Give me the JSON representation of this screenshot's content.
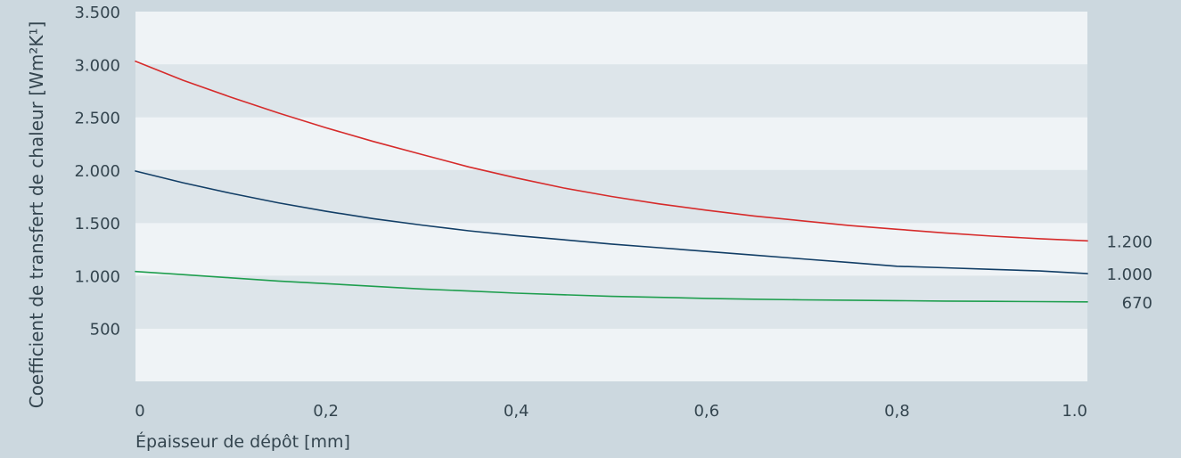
{
  "chart_data": {
    "type": "line",
    "title": "",
    "xlabel": "Épaisseur de dépôt  [mm]",
    "ylabel": "Coefficient de transfert de chaleur [Wm²K¹]",
    "xlim": [
      0,
      1.0
    ],
    "ylim": [
      0,
      3500
    ],
    "x_ticks": [
      {
        "value": 0,
        "label": "0"
      },
      {
        "value": 0.2,
        "label": "0,2"
      },
      {
        "value": 0.4,
        "label": "0,4"
      },
      {
        "value": 0.6,
        "label": "0,6"
      },
      {
        "value": 0.8,
        "label": "0,8"
      },
      {
        "value": 1.0,
        "label": "1.0"
      }
    ],
    "y_ticks": [
      {
        "value": 500,
        "label": "500"
      },
      {
        "value": 1000,
        "label": "1.000"
      },
      {
        "value": 1500,
        "label": "1.500"
      },
      {
        "value": 2000,
        "label": "2.000"
      },
      {
        "value": 2500,
        "label": "2.500"
      },
      {
        "value": 3000,
        "label": "3.000"
      },
      {
        "value": 3500,
        "label": "3.500"
      }
    ],
    "grid": "horizontal alternating bands",
    "legend": "none",
    "series": [
      {
        "end_label": "1.200",
        "color": "#d62b2b",
        "x": [
          0,
          0.05,
          0.1,
          0.15,
          0.2,
          0.25,
          0.3,
          0.35,
          0.4,
          0.45,
          0.5,
          0.55,
          0.6,
          0.65,
          0.7,
          0.75,
          0.8,
          0.85,
          0.9,
          0.95,
          1.0
        ],
        "y": [
          3030,
          2850,
          2690,
          2540,
          2400,
          2270,
          2150,
          2030,
          1925,
          1830,
          1750,
          1680,
          1620,
          1565,
          1520,
          1475,
          1440,
          1405,
          1375,
          1350,
          1330
        ]
      },
      {
        "end_label": "1.000",
        "color": "#123e66",
        "x": [
          0,
          0.05,
          0.1,
          0.15,
          0.2,
          0.25,
          0.3,
          0.35,
          0.4,
          0.45,
          0.5,
          0.55,
          0.6,
          0.65,
          0.7,
          0.75,
          0.8,
          0.85,
          0.9,
          0.95,
          1.0
        ],
        "y": [
          1990,
          1880,
          1780,
          1690,
          1610,
          1540,
          1480,
          1425,
          1380,
          1340,
          1300,
          1265,
          1230,
          1195,
          1160,
          1125,
          1090,
          1075,
          1060,
          1045,
          1020
        ]
      },
      {
        "end_label": "670",
        "color": "#1e9e4e",
        "x": [
          0,
          0.05,
          0.1,
          0.15,
          0.2,
          0.25,
          0.3,
          0.35,
          0.4,
          0.45,
          0.5,
          0.55,
          0.6,
          0.65,
          0.7,
          0.75,
          0.8,
          0.85,
          0.9,
          0.95,
          1.0
        ],
        "y": [
          1040,
          1010,
          980,
          950,
          925,
          900,
          875,
          855,
          835,
          820,
          805,
          795,
          785,
          778,
          772,
          768,
          764,
          760,
          757,
          755,
          752
        ]
      }
    ]
  }
}
